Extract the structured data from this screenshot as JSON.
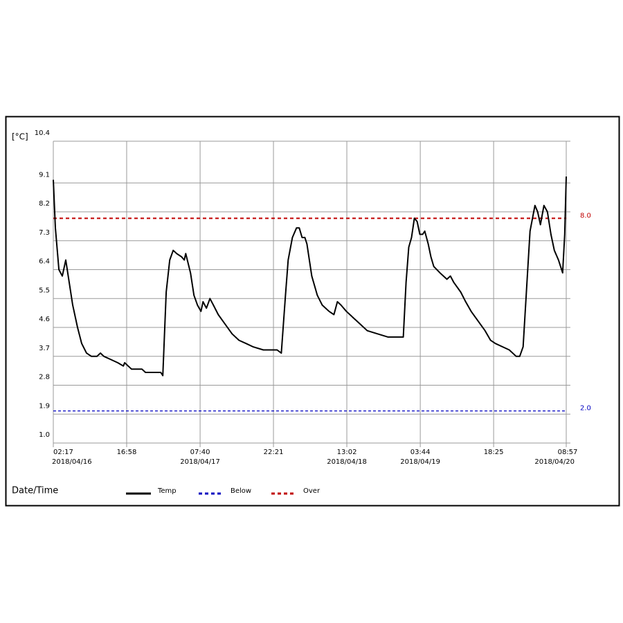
{
  "chart_data": {
    "type": "line",
    "y_label": "[°C]",
    "x_label": "Date/Time",
    "ylim": [
      1.0,
      10.4
    ],
    "yticks": [
      {
        "value": 1.0,
        "label": "1.0"
      },
      1.9,
      2.8,
      3.7,
      4.6,
      5.5,
      6.4,
      7.3,
      8.2,
      9.1,
      10.4
    ],
    "xlim": [
      "2018-04-16 02:17",
      "2018-04-20 08:57"
    ],
    "xticks": [
      {
        "value": "2018-04-16 02:17",
        "label": "02:17",
        "date": "2018/04/16"
      },
      {
        "value": "2018-04-16 16:58",
        "label": "16:58"
      },
      {
        "value": "2018-04-17 07:40",
        "label": "07:40",
        "date": "2018/04/17"
      },
      {
        "value": "2018-04-17 22:21",
        "label": "22:21"
      },
      {
        "value": "2018-04-18 13:02",
        "label": "13:02",
        "date": "2018/04/18"
      },
      {
        "value": "2018-04-19 03:44",
        "label": "03:44",
        "date": "2018/04/19"
      },
      {
        "value": "2018-04-19 18:25",
        "label": "18:25"
      },
      {
        "value": "2018-04-20 08:57",
        "label": "08:57",
        "date": "2018/04/20"
      }
    ],
    "grid": true,
    "x": [
      "2018-04-16 02:17",
      "2018-04-16 02:42",
      "2018-04-16 03:24",
      "2018-04-16 04:05",
      "2018-04-16 04:47",
      "2018-04-16 05:28",
      "2018-04-16 06:10",
      "2018-04-16 07:08",
      "2018-04-16 07:58",
      "2018-04-16 08:56",
      "2018-04-16 09:55",
      "2018-04-16 11:01",
      "2018-04-16 11:43",
      "2018-04-16 12:25",
      "2018-04-16 13:48",
      "2018-04-16 15:11",
      "2018-04-16 16:18",
      "2018-04-16 16:34",
      "2018-04-16 17:16",
      "2018-04-16 17:57",
      "2018-04-16 20:02",
      "2018-04-16 20:44",
      "2018-04-16 23:47",
      "2018-04-17 00:12",
      "2018-04-17 00:53",
      "2018-04-17 01:35",
      "2018-04-17 02:17",
      "2018-04-17 02:58",
      "2018-04-17 03:57",
      "2018-04-17 04:30",
      "2018-04-17 04:47",
      "2018-04-17 05:45",
      "2018-04-17 06:26",
      "2018-04-17 07:08",
      "2018-04-17 07:50",
      "2018-04-17 08:15",
      "2018-04-17 08:56",
      "2018-04-17 09:38",
      "2018-04-17 10:19",
      "2018-04-17 11:18",
      "2018-04-17 12:41",
      "2018-04-17 14:04",
      "2018-04-17 15:27",
      "2018-04-17 16:51",
      "2018-04-17 18:14",
      "2018-04-17 20:19",
      "2018-04-17 23:05",
      "2018-04-17 23:55",
      "2018-04-18 00:45",
      "2018-04-18 01:18",
      "2018-04-18 02:08",
      "2018-04-18 02:58",
      "2018-04-18 03:31",
      "2018-04-18 04:05",
      "2018-04-18 04:38",
      "2018-04-18 05:03",
      "2018-04-18 06:01",
      "2018-04-18 07:08",
      "2018-04-18 08:06",
      "2018-04-18 09:29",
      "2018-04-18 10:27",
      "2018-04-18 11:09",
      "2018-04-18 11:51",
      "2018-04-18 12:57",
      "2018-04-18 14:20",
      "2018-04-18 15:44",
      "2018-04-18 17:07",
      "2018-04-18 19:12",
      "2018-04-18 21:17",
      "2018-04-18 23:46",
      "2018-04-19 00:20",
      "2018-04-19 00:53",
      "2018-04-19 01:26",
      "2018-04-19 01:59",
      "2018-04-19 02:33",
      "2018-04-19 03:06",
      "2018-04-19 03:39",
      "2018-04-19 04:13",
      "2018-04-19 04:38",
      "2018-04-19 05:19",
      "2018-04-19 05:52",
      "2018-04-19 06:26",
      "2018-04-19 07:41",
      "2018-04-19 09:04",
      "2018-04-19 09:46",
      "2018-04-19 10:27",
      "2018-04-19 11:50",
      "2018-04-19 12:49",
      "2018-04-19 13:55",
      "2018-04-19 15:18",
      "2018-04-19 16:42",
      "2018-04-19 17:48",
      "2018-04-19 18:46",
      "2018-04-19 20:10",
      "2018-04-19 21:33",
      "2018-04-19 22:56",
      "2018-04-19 23:38",
      "2018-04-20 00:19",
      "2018-04-20 01:01",
      "2018-04-20 01:42",
      "2018-04-20 02:41",
      "2018-04-20 03:14",
      "2018-04-20 03:47",
      "2018-04-20 04:29",
      "2018-04-20 05:11",
      "2018-04-20 05:53",
      "2018-04-20 06:34",
      "2018-04-20 07:24",
      "2018-04-20 08:14",
      "2018-04-20 08:39",
      "2018-04-20 08:57"
    ],
    "series": [
      {
        "name": "Temp",
        "color": "#000000",
        "values": [
          9.2,
          7.7,
          6.4,
          6.2,
          6.7,
          6.0,
          5.3,
          4.6,
          4.1,
          3.8,
          3.7,
          3.7,
          3.8,
          3.7,
          3.6,
          3.5,
          3.4,
          3.5,
          3.4,
          3.3,
          3.3,
          3.2,
          3.2,
          3.1,
          5.7,
          6.7,
          7.0,
          6.9,
          6.8,
          6.7,
          6.9,
          6.3,
          5.6,
          5.3,
          5.1,
          5.4,
          5.2,
          5.5,
          5.3,
          5.0,
          4.7,
          4.4,
          4.2,
          4.1,
          4.0,
          3.9,
          3.9,
          3.8,
          5.6,
          6.7,
          7.4,
          7.7,
          7.7,
          7.4,
          7.4,
          7.2,
          6.2,
          5.6,
          5.3,
          5.1,
          5.0,
          5.4,
          5.3,
          5.1,
          4.9,
          4.7,
          4.5,
          4.4,
          4.3,
          4.3,
          4.3,
          6.0,
          7.1,
          7.4,
          8.0,
          7.9,
          7.5,
          7.5,
          7.6,
          7.2,
          6.8,
          6.5,
          6.3,
          6.1,
          6.2,
          6.0,
          5.7,
          5.4,
          5.1,
          4.8,
          4.5,
          4.2,
          4.1,
          4.0,
          3.9,
          3.7,
          3.7,
          4.0,
          5.8,
          7.6,
          8.4,
          8.2,
          7.8,
          8.4,
          8.2,
          7.5,
          7.0,
          6.7,
          6.3,
          7.5,
          9.3
        ]
      }
    ],
    "thresholds": [
      {
        "name": "Below",
        "color": "#0000c0",
        "value": 2.0,
        "value_label": "2.0"
      },
      {
        "name": "Over",
        "color": "#c00000",
        "value": 8.0,
        "value_label": "8.0"
      }
    ]
  }
}
